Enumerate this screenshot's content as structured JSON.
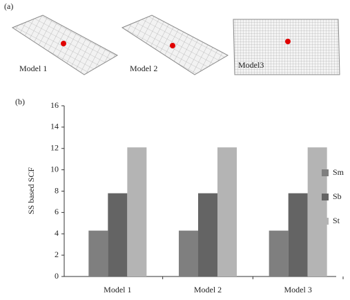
{
  "panel_a": {
    "label": "(a)",
    "captions": [
      "Model 1",
      "Model 2",
      "Model3"
    ]
  },
  "panel_b": {
    "label": "(b)"
  },
  "chart_data": {
    "type": "bar",
    "y_label": "SS based SCF",
    "categories": [
      "Model 1",
      "Model 2",
      "Model 3"
    ],
    "series": [
      {
        "name": "Sm",
        "color": "#7f7f7f",
        "values": [
          4.3,
          4.3,
          4.3
        ]
      },
      {
        "name": "Sb",
        "color": "#646464",
        "values": [
          7.8,
          7.8,
          7.8
        ]
      },
      {
        "name": "St",
        "color": "#b4b4b4",
        "values": [
          12.1,
          12.1,
          12.1
        ]
      }
    ],
    "ylim": [
      0,
      16
    ],
    "yticks": [
      0,
      2,
      4,
      6,
      8,
      10,
      12,
      14,
      16
    ],
    "grid": false,
    "legend": "right"
  }
}
